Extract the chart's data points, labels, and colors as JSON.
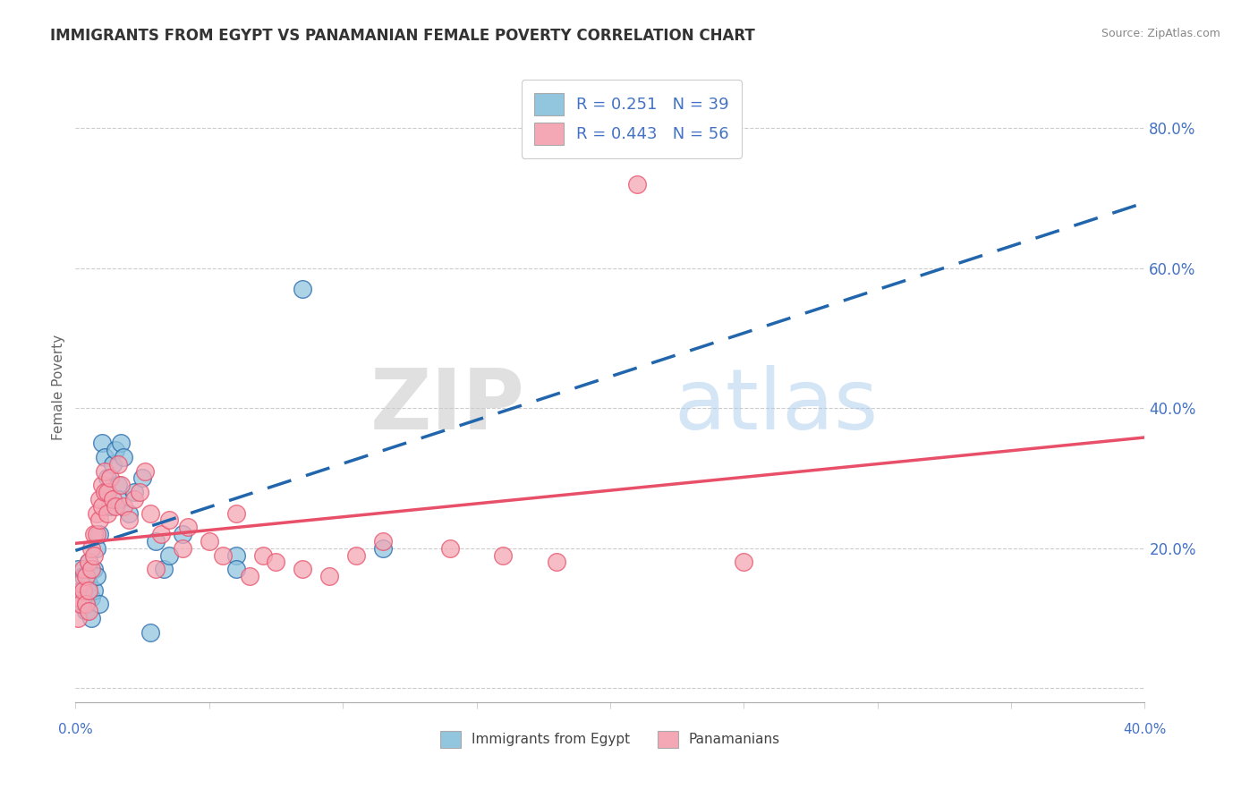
{
  "title": "IMMIGRANTS FROM EGYPT VS PANAMANIAN FEMALE POVERTY CORRELATION CHART",
  "source": "Source: ZipAtlas.com",
  "ylabel": "Female Poverty",
  "ytick_vals": [
    0.0,
    0.2,
    0.4,
    0.6,
    0.8
  ],
  "ytick_labels": [
    "",
    "20.0%",
    "40.0%",
    "60.0%",
    "80.0%"
  ],
  "xlim": [
    0.0,
    0.4
  ],
  "ylim": [
    -0.02,
    0.88
  ],
  "blue_color": "#92C5DE",
  "pink_color": "#F4A7B5",
  "blue_line_color": "#2166AC",
  "pink_line_color": "#E8506A",
  "watermark_zip": "ZIP",
  "watermark_atlas": "atlas",
  "egypt_R": 0.251,
  "egypt_N": 39,
  "panama_R": 0.443,
  "panama_N": 56,
  "egypt_points": [
    [
      0.001,
      0.17
    ],
    [
      0.002,
      0.14
    ],
    [
      0.002,
      0.12
    ],
    [
      0.003,
      0.16
    ],
    [
      0.004,
      0.13
    ],
    [
      0.004,
      0.11
    ],
    [
      0.005,
      0.15
    ],
    [
      0.005,
      0.18
    ],
    [
      0.006,
      0.13
    ],
    [
      0.006,
      0.1
    ],
    [
      0.007,
      0.17
    ],
    [
      0.007,
      0.14
    ],
    [
      0.008,
      0.2
    ],
    [
      0.008,
      0.16
    ],
    [
      0.009,
      0.12
    ],
    [
      0.009,
      0.22
    ],
    [
      0.01,
      0.35
    ],
    [
      0.011,
      0.33
    ],
    [
      0.012,
      0.3
    ],
    [
      0.012,
      0.28
    ],
    [
      0.013,
      0.26
    ],
    [
      0.014,
      0.32
    ],
    [
      0.015,
      0.34
    ],
    [
      0.016,
      0.29
    ],
    [
      0.016,
      0.27
    ],
    [
      0.017,
      0.35
    ],
    [
      0.018,
      0.33
    ],
    [
      0.02,
      0.25
    ],
    [
      0.022,
      0.28
    ],
    [
      0.025,
      0.3
    ],
    [
      0.028,
      0.08
    ],
    [
      0.03,
      0.21
    ],
    [
      0.033,
      0.17
    ],
    [
      0.035,
      0.19
    ],
    [
      0.04,
      0.22
    ],
    [
      0.06,
      0.19
    ],
    [
      0.06,
      0.17
    ],
    [
      0.085,
      0.57
    ],
    [
      0.115,
      0.2
    ]
  ],
  "panama_points": [
    [
      0.001,
      0.13
    ],
    [
      0.001,
      0.1
    ],
    [
      0.002,
      0.15
    ],
    [
      0.002,
      0.12
    ],
    [
      0.003,
      0.17
    ],
    [
      0.003,
      0.14
    ],
    [
      0.004,
      0.16
    ],
    [
      0.004,
      0.12
    ],
    [
      0.005,
      0.18
    ],
    [
      0.005,
      0.14
    ],
    [
      0.005,
      0.11
    ],
    [
      0.006,
      0.2
    ],
    [
      0.006,
      0.17
    ],
    [
      0.007,
      0.22
    ],
    [
      0.007,
      0.19
    ],
    [
      0.008,
      0.25
    ],
    [
      0.008,
      0.22
    ],
    [
      0.009,
      0.27
    ],
    [
      0.009,
      0.24
    ],
    [
      0.01,
      0.29
    ],
    [
      0.01,
      0.26
    ],
    [
      0.011,
      0.31
    ],
    [
      0.011,
      0.28
    ],
    [
      0.012,
      0.28
    ],
    [
      0.012,
      0.25
    ],
    [
      0.013,
      0.3
    ],
    [
      0.014,
      0.27
    ],
    [
      0.015,
      0.26
    ],
    [
      0.016,
      0.32
    ],
    [
      0.017,
      0.29
    ],
    [
      0.018,
      0.26
    ],
    [
      0.02,
      0.24
    ],
    [
      0.022,
      0.27
    ],
    [
      0.024,
      0.28
    ],
    [
      0.026,
      0.31
    ],
    [
      0.028,
      0.25
    ],
    [
      0.03,
      0.17
    ],
    [
      0.032,
      0.22
    ],
    [
      0.035,
      0.24
    ],
    [
      0.04,
      0.2
    ],
    [
      0.042,
      0.23
    ],
    [
      0.05,
      0.21
    ],
    [
      0.055,
      0.19
    ],
    [
      0.06,
      0.25
    ],
    [
      0.065,
      0.16
    ],
    [
      0.07,
      0.19
    ],
    [
      0.075,
      0.18
    ],
    [
      0.085,
      0.17
    ],
    [
      0.095,
      0.16
    ],
    [
      0.105,
      0.19
    ],
    [
      0.115,
      0.21
    ],
    [
      0.14,
      0.2
    ],
    [
      0.16,
      0.19
    ],
    [
      0.18,
      0.18
    ],
    [
      0.21,
      0.72
    ],
    [
      0.25,
      0.18
    ]
  ]
}
